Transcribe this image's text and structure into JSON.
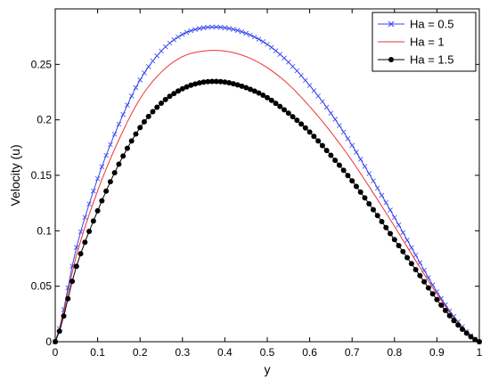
{
  "chart_data": {
    "type": "line",
    "title": "",
    "xlabel": "y",
    "ylabel": "Velocity (u)",
    "xlim": [
      0,
      1
    ],
    "ylim": [
      0,
      0.3
    ],
    "xticks": [
      "0",
      "0.1",
      "0.2",
      "0.3",
      "0.4",
      "0.5",
      "0.6",
      "0.7",
      "0.8",
      "0.9",
      "1"
    ],
    "yticks": [
      "0",
      "0.05",
      "0.1",
      "0.15",
      "0.2",
      "0.25"
    ],
    "grid": false,
    "legend_position": "top-right",
    "series": [
      {
        "name": "Ha = 0.5",
        "color": "#3344ee",
        "marker": "x",
        "x": [
          0,
          0.05,
          0.1,
          0.15,
          0.2,
          0.25,
          0.3,
          0.35,
          0.4,
          0.45,
          0.5,
          0.55,
          0.6,
          0.65,
          0.7,
          0.75,
          0.8,
          0.85,
          0.9,
          0.95,
          1
        ],
        "y": [
          0,
          0.085,
          0.147,
          0.196,
          0.236,
          0.262,
          0.277,
          0.283,
          0.283,
          0.278,
          0.268,
          0.252,
          0.231,
          0.206,
          0.177,
          0.145,
          0.112,
          0.078,
          0.045,
          0.018,
          0
        ]
      },
      {
        "name": "Ha = 1",
        "color": "#ee3333",
        "marker": "none",
        "x": [
          0,
          0.05,
          0.1,
          0.15,
          0.2,
          0.25,
          0.3,
          0.35,
          0.4,
          0.45,
          0.5,
          0.55,
          0.6,
          0.65,
          0.7,
          0.75,
          0.8,
          0.85,
          0.9,
          0.95,
          1
        ],
        "y": [
          0,
          0.078,
          0.136,
          0.182,
          0.219,
          0.243,
          0.257,
          0.262,
          0.262,
          0.257,
          0.247,
          0.232,
          0.212,
          0.189,
          0.163,
          0.134,
          0.104,
          0.073,
          0.043,
          0.017,
          0
        ]
      },
      {
        "name": "Ha = 1.5",
        "color": "#000000",
        "marker": "circle",
        "x": [
          0,
          0.05,
          0.1,
          0.15,
          0.2,
          0.25,
          0.3,
          0.35,
          0.4,
          0.45,
          0.5,
          0.55,
          0.6,
          0.65,
          0.7,
          0.75,
          0.8,
          0.85,
          0.9,
          0.95,
          1
        ],
        "y": [
          0,
          0.068,
          0.118,
          0.16,
          0.193,
          0.215,
          0.228,
          0.234,
          0.234,
          0.229,
          0.22,
          0.206,
          0.189,
          0.168,
          0.145,
          0.119,
          0.092,
          0.065,
          0.038,
          0.015,
          0
        ]
      }
    ]
  }
}
